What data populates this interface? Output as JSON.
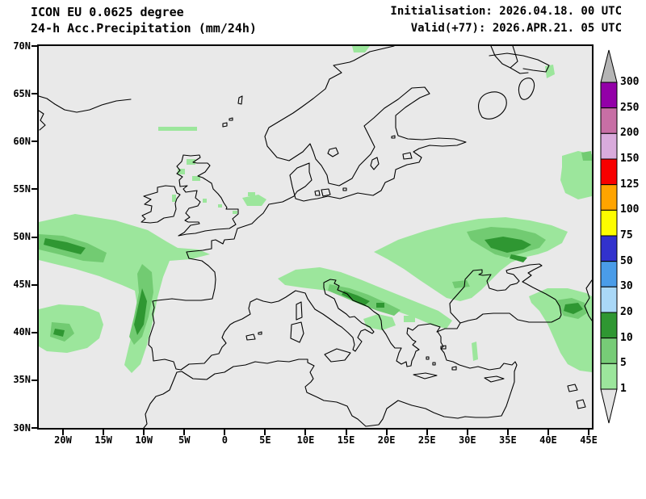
{
  "header": {
    "model_line": "ICON EU 0.0625 degree",
    "product_line": "24-h Acc.Precipitation (mm/24h)",
    "init_line": "Initialisation: 2026.04.18. 00 UTC",
    "valid_line": "Valid(+77): 2026.APR.21. 05 UTC"
  },
  "axes": {
    "lat_ticks": [
      "70N",
      "65N",
      "60N",
      "55N",
      "50N",
      "45N",
      "40N",
      "35N",
      "30N"
    ],
    "lon_ticks": [
      "20W",
      "15W",
      "10W",
      "5W",
      "0",
      "5E",
      "10E",
      "15E",
      "20E",
      "25E",
      "30E",
      "35E",
      "40E",
      "45E"
    ]
  },
  "colorbar": {
    "tick_labels": [
      "300",
      "250",
      "200",
      "150",
      "125",
      "100",
      "75",
      "50",
      "30",
      "20",
      "10",
      "5",
      "1"
    ],
    "segment_colors_top_to_bottom": [
      "#9300a8",
      "#c76fa5",
      "#d9abdc",
      "#f80000",
      "#ffa400",
      "#fdfd00",
      "#3232cd",
      "#4a9ce8",
      "#aad8f7",
      "#2f9732",
      "#77cc77",
      "#9ce69c"
    ],
    "overflow_arrow_color": "#b5b5b5",
    "underflow_arrow_color": "#e4e4e4"
  },
  "map_colors": {
    "background": "#e9e9e9",
    "coastline": "#000000",
    "precip_light": "#9ce69c",
    "precip_medium": "#72cb72",
    "precip_dark": "#2f9732"
  },
  "chart_data": {
    "type": "heatmap",
    "title": "24-h Acc.Precipitation (mm/24h)",
    "model": "ICON EU 0.0625 degree",
    "initialisation": "2026.04.18. 00 UTC",
    "valid": "Valid(+77): 2026.APR.21. 05 UTC",
    "lon_range_deg": [
      -23,
      45.5
    ],
    "lat_range_deg": [
      30,
      70
    ],
    "scale_levels_mm": [
      1,
      5,
      10,
      20,
      30,
      50,
      75,
      100,
      125,
      150,
      200,
      250,
      300
    ],
    "regions": [
      {
        "area": "North Atlantic storm band west of Ireland / Biscay (23W-5W, 46-52N)",
        "value_mm": "1-20"
      },
      {
        "area": "Atlantic near 21W, 40-41N",
        "value_mm": "1-10"
      },
      {
        "area": "Alps / northern Italy / Adriatic / Dinarides (7E-21E, 41-47N)",
        "value_mm": "1-20"
      },
      {
        "area": "Ukraine / southern Russia around Sea of Azov (25E-40E, 44-52N)",
        "value_mm": "1-20"
      },
      {
        "area": "Caucasus / map east edge (40E-45E, 35-47N)",
        "value_mm": "1-20"
      },
      {
        "area": "Right edge 54-59N (42E-45E)",
        "value_mm": "1-10"
      },
      {
        "area": "Scotland / southern North Sea / Channel patches",
        "value_mm": "1-5"
      }
    ]
  }
}
